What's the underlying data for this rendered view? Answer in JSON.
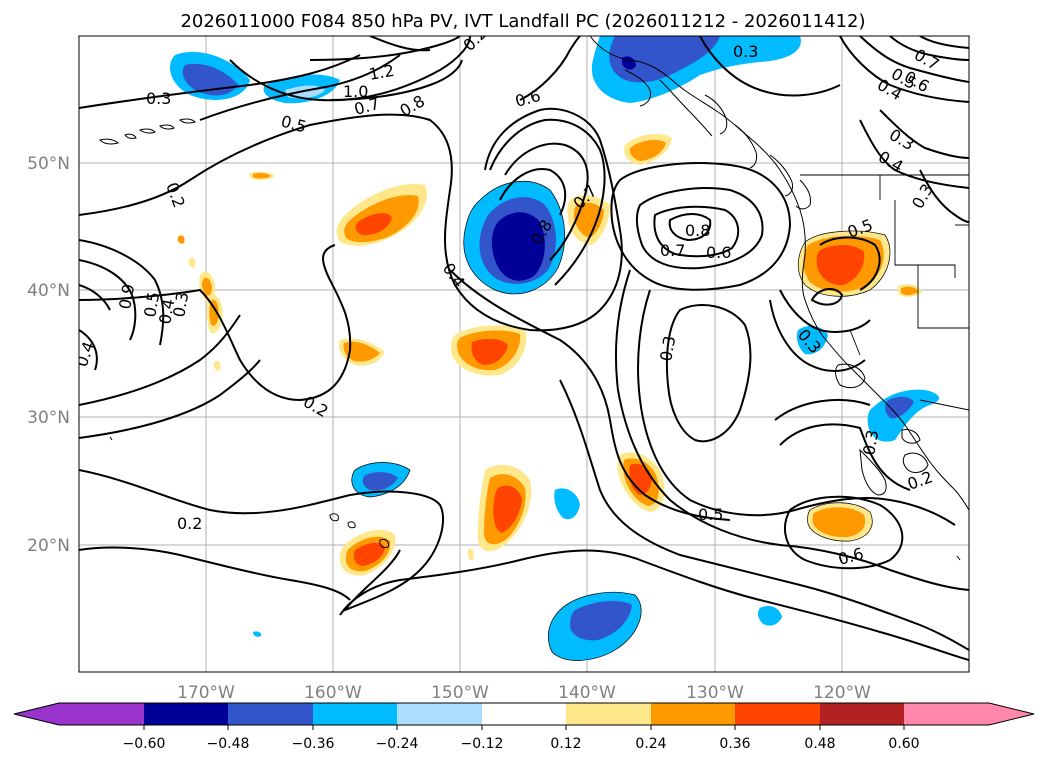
{
  "title": "2026011000 F084 850 hPa PV, IVT Landfall PC (2026011212 - 2026011412)",
  "map": {
    "lon_range": [
      -180,
      -110
    ],
    "lat_range": [
      10,
      60
    ],
    "x_ticks": [
      "170°W",
      "160°W",
      "150°W",
      "140°W",
      "130°W",
      "120°W"
    ],
    "y_ticks": [
      "50°N",
      "40°N",
      "30°N",
      "20°N"
    ]
  },
  "colorbar": {
    "tick_labels": [
      "−0.60",
      "−0.48",
      "−0.36",
      "−0.24",
      "−0.12",
      "0.12",
      "0.24",
      "0.36",
      "0.48",
      "0.60"
    ],
    "colors": [
      "#9933cc",
      "#000099",
      "#3355cc",
      "#00bbff",
      "#aaddff",
      "#ffffff",
      "#ffe88c",
      "#ff9900",
      "#ff4400",
      "#b22222",
      "#ff88aa"
    ]
  },
  "contour_labels": [
    {
      "text": "0.3"
    },
    {
      "text": "0.5"
    },
    {
      "text": "0.7"
    },
    {
      "text": "1.0"
    },
    {
      "text": "1.2"
    },
    {
      "text": "0.8"
    },
    {
      "text": "0.6"
    },
    {
      "text": "0.3"
    },
    {
      "text": "0.2"
    },
    {
      "text": "0.9"
    },
    {
      "text": "0.5"
    },
    {
      "text": "0.4"
    },
    {
      "text": "0.3"
    },
    {
      "text": "0.4"
    },
    {
      "text": "0.2"
    },
    {
      "text": "0.2"
    },
    {
      "text": "0.4"
    },
    {
      "text": "0.8"
    },
    {
      "text": "0.7"
    },
    {
      "text": "0.8"
    },
    {
      "text": "0.7"
    },
    {
      "text": "0.6"
    },
    {
      "text": "0.3"
    },
    {
      "text": "0.5"
    },
    {
      "text": "0.6"
    },
    {
      "text": "0.5"
    },
    {
      "text": "0.3"
    },
    {
      "text": "0.7"
    },
    {
      "text": "0.6"
    },
    {
      "text": "0.4"
    },
    {
      "text": "0.3"
    },
    {
      "text": "0.4"
    },
    {
      "text": "0.3"
    },
    {
      "text": "0.5"
    },
    {
      "text": "0.2"
    },
    {
      "text": "0.3"
    },
    {
      "text": "0.2"
    }
  ]
}
